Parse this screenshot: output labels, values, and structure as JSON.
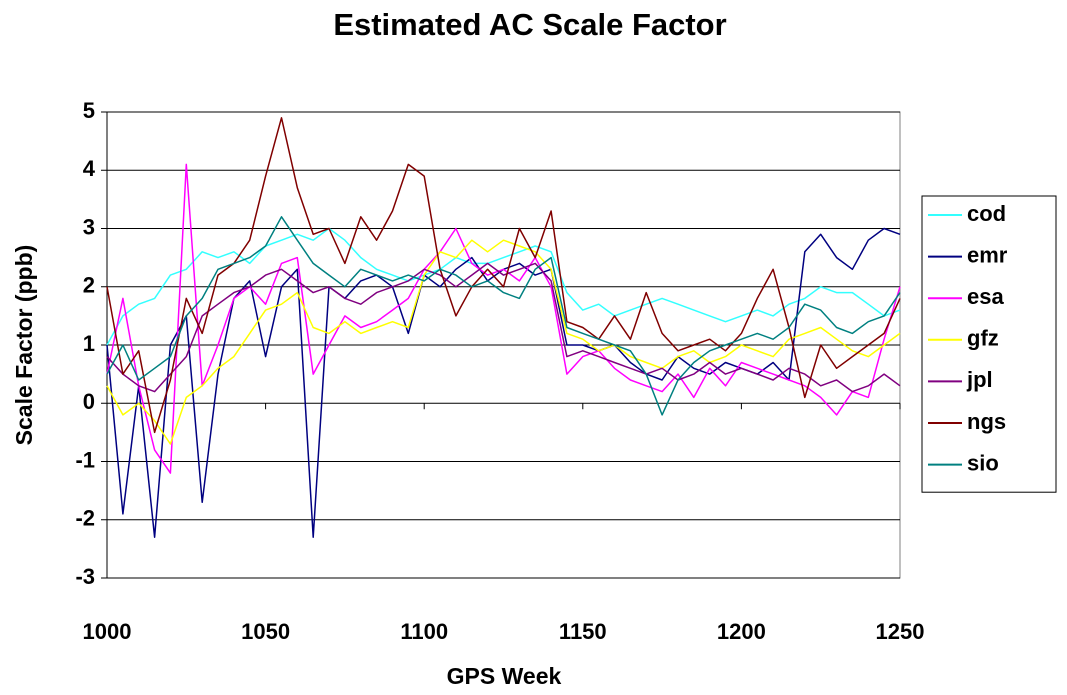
{
  "chart_data": {
    "type": "line",
    "title": "Estimated AC Scale Factor",
    "x_label": "GPS Week",
    "y_label": "Scale Factor (ppb)",
    "x": [
      1000,
      1005,
      1010,
      1015,
      1020,
      1025,
      1030,
      1035,
      1040,
      1045,
      1050,
      1055,
      1060,
      1065,
      1070,
      1075,
      1080,
      1085,
      1090,
      1095,
      1100,
      1105,
      1110,
      1115,
      1120,
      1125,
      1130,
      1135,
      1140,
      1145,
      1150,
      1155,
      1160,
      1165,
      1170,
      1175,
      1180,
      1185,
      1190,
      1195,
      1200,
      1205,
      1210,
      1215,
      1220,
      1225,
      1230,
      1235,
      1240,
      1245,
      1250
    ],
    "xlim": [
      1000,
      1250
    ],
    "xticks": [
      1000,
      1050,
      1100,
      1150,
      1200,
      1250
    ],
    "ylim": [
      -3,
      5
    ],
    "yticks": [
      -3,
      -2,
      -1,
      0,
      1,
      2,
      3,
      4,
      5
    ],
    "grid": true,
    "legend": "right",
    "series": [
      {
        "name": "cod",
        "color": "#33ffff",
        "values": [
          1.0,
          1.5,
          1.7,
          1.8,
          2.2,
          2.3,
          2.6,
          2.5,
          2.6,
          2.4,
          2.7,
          2.8,
          2.9,
          2.8,
          3.0,
          2.8,
          2.5,
          2.3,
          2.2,
          2.1,
          2.2,
          2.3,
          2.5,
          2.4,
          2.4,
          2.5,
          2.6,
          2.7,
          2.6,
          1.9,
          1.6,
          1.7,
          1.5,
          1.6,
          1.7,
          1.8,
          1.7,
          1.6,
          1.5,
          1.4,
          1.5,
          1.6,
          1.5,
          1.7,
          1.8,
          2.0,
          1.9,
          1.9,
          1.7,
          1.5,
          1.6
        ]
      },
      {
        "name": "emr",
        "color": "#000080",
        "values": [
          1.0,
          -1.9,
          0.3,
          -2.3,
          1.0,
          1.5,
          -1.7,
          0.5,
          1.8,
          2.1,
          0.8,
          2.0,
          2.3,
          -2.3,
          2.0,
          1.8,
          2.1,
          2.2,
          2.0,
          1.2,
          2.2,
          2.0,
          2.3,
          2.5,
          2.1,
          2.3,
          2.4,
          2.2,
          2.3,
          1.0,
          1.0,
          0.9,
          1.0,
          0.7,
          0.5,
          0.4,
          0.8,
          0.6,
          0.5,
          0.7,
          0.6,
          0.5,
          0.7,
          0.4,
          2.6,
          2.9,
          2.5,
          2.3,
          2.8,
          3.0,
          2.9
        ]
      },
      {
        "name": "esa",
        "color": "#ff00ff",
        "values": [
          0.5,
          1.8,
          0.3,
          -0.8,
          -1.2,
          4.1,
          0.3,
          1.0,
          1.8,
          2.0,
          1.7,
          2.4,
          2.5,
          0.5,
          1.0,
          1.5,
          1.3,
          1.4,
          1.6,
          1.8,
          2.3,
          2.6,
          3.0,
          2.4,
          2.2,
          2.3,
          2.1,
          2.5,
          2.0,
          0.5,
          0.8,
          0.9,
          0.6,
          0.4,
          0.3,
          0.2,
          0.5,
          0.1,
          0.6,
          0.3,
          0.7,
          0.6,
          0.5,
          0.4,
          0.3,
          0.1,
          -0.2,
          0.2,
          0.1,
          1.1,
          2.0
        ]
      },
      {
        "name": "gfz",
        "color": "#ffff00",
        "values": [
          0.3,
          -0.2,
          0.0,
          -0.3,
          -0.7,
          0.1,
          0.3,
          0.6,
          0.8,
          1.2,
          1.6,
          1.7,
          1.9,
          1.3,
          1.2,
          1.4,
          1.2,
          1.3,
          1.4,
          1.3,
          2.2,
          2.6,
          2.5,
          2.8,
          2.6,
          2.8,
          2.7,
          2.6,
          2.3,
          1.2,
          1.1,
          0.9,
          1.0,
          0.8,
          0.7,
          0.6,
          0.8,
          0.9,
          0.7,
          0.8,
          1.0,
          0.9,
          0.8,
          1.1,
          1.2,
          1.3,
          1.1,
          0.9,
          0.8,
          1.0,
          1.2
        ]
      },
      {
        "name": "jpl",
        "color": "#800080",
        "values": [
          0.8,
          0.5,
          0.3,
          0.2,
          0.5,
          0.8,
          1.5,
          1.7,
          1.9,
          2.0,
          2.2,
          2.3,
          2.1,
          1.9,
          2.0,
          1.8,
          1.7,
          1.9,
          2.0,
          2.1,
          2.3,
          2.2,
          2.0,
          2.2,
          2.4,
          2.2,
          2.3,
          2.4,
          2.1,
          0.8,
          0.9,
          0.8,
          0.7,
          0.6,
          0.5,
          0.6,
          0.4,
          0.5,
          0.7,
          0.5,
          0.6,
          0.5,
          0.4,
          0.6,
          0.5,
          0.3,
          0.4,
          0.2,
          0.3,
          0.5,
          0.3
        ]
      },
      {
        "name": "ngs",
        "color": "#800000",
        "values": [
          2.0,
          0.5,
          0.9,
          -0.5,
          0.4,
          1.8,
          1.2,
          2.2,
          2.4,
          2.8,
          3.9,
          4.9,
          3.7,
          2.9,
          3.0,
          2.4,
          3.2,
          2.8,
          3.3,
          4.1,
          3.9,
          2.3,
          1.5,
          2.0,
          2.3,
          2.0,
          3.0,
          2.5,
          3.3,
          1.4,
          1.3,
          1.1,
          1.5,
          1.1,
          1.9,
          1.2,
          0.9,
          1.0,
          1.1,
          0.9,
          1.2,
          1.8,
          2.3,
          1.3,
          0.1,
          1.0,
          0.6,
          0.8,
          1.0,
          1.2,
          1.8
        ]
      },
      {
        "name": "sio",
        "color": "#008080",
        "values": [
          0.5,
          1.0,
          0.4,
          0.6,
          0.8,
          1.5,
          1.8,
          2.3,
          2.4,
          2.5,
          2.7,
          3.2,
          2.8,
          2.4,
          2.2,
          2.0,
          2.3,
          2.2,
          2.1,
          2.2,
          2.1,
          2.3,
          2.2,
          2.0,
          2.1,
          1.9,
          1.8,
          2.3,
          2.5,
          1.3,
          1.2,
          1.1,
          1.0,
          0.9,
          0.5,
          -0.2,
          0.4,
          0.7,
          0.9,
          1.0,
          1.1,
          1.2,
          1.1,
          1.3,
          1.7,
          1.6,
          1.3,
          1.2,
          1.4,
          1.5,
          1.9
        ]
      }
    ]
  }
}
